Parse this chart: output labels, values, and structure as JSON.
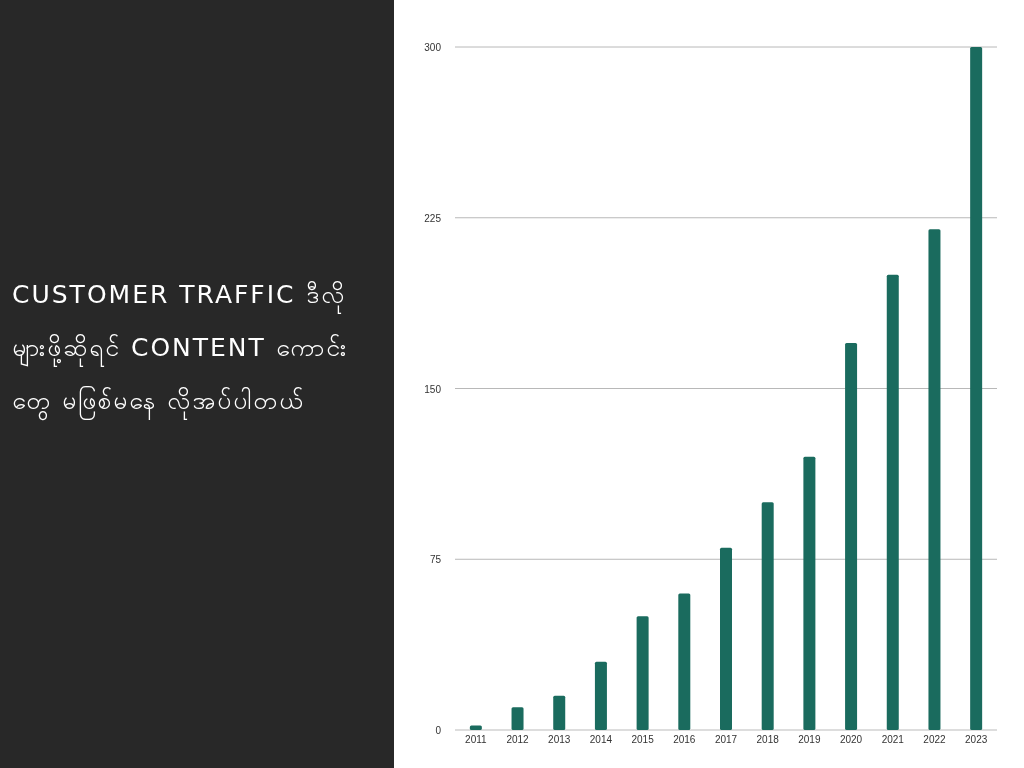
{
  "chart_data": {
    "type": "bar",
    "title": "CUSTOMER TRAFFIC ဒီလိုများဖို့ဆိုရင် CONTENT ကောင်းတွေ မဖြစ်မနေ လိုအပ်ပါတယ်",
    "categories": [
      "2011",
      "2012",
      "2013",
      "2014",
      "2015",
      "2016",
      "2017",
      "2018",
      "2019",
      "2020",
      "2021",
      "2022",
      "2023"
    ],
    "values": [
      2,
      10,
      15,
      30,
      50,
      60,
      80,
      100,
      120,
      170,
      200,
      220,
      300
    ],
    "color": "#1a6b5e",
    "ylim": [
      0,
      300
    ],
    "yticks": [
      0,
      75,
      150,
      225,
      300
    ],
    "grid": "y"
  }
}
